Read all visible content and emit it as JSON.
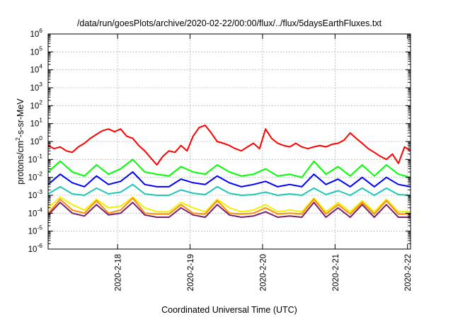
{
  "chart_data": {
    "type": "line",
    "title": "/data/run/goesPlots/archive/2020-02-22/00:00/flux/../flux/5daysEarthFluxes.txt",
    "xlabel": "Coordinated Universal Time (UTC)",
    "ylabel_parts": [
      "protons/cm",
      "2",
      "-s-sr-MeV"
    ],
    "y_scale": "log",
    "ylim": [
      1e-06,
      1000000.0
    ],
    "y_ticks": [
      {
        "base": "10",
        "exp": "-6",
        "value": 1e-06
      },
      {
        "base": "10",
        "exp": "-5",
        "value": 1e-05
      },
      {
        "base": "10",
        "exp": "-4",
        "value": 0.0001
      },
      {
        "base": "10",
        "exp": "-3",
        "value": 0.001
      },
      {
        "base": "10",
        "exp": "-2",
        "value": 0.01
      },
      {
        "base": "10",
        "exp": "-1",
        "value": 0.1
      },
      {
        "base": "10",
        "exp": "0",
        "value": 1
      },
      {
        "base": "10",
        "exp": "1",
        "value": 10
      },
      {
        "base": "10",
        "exp": "2",
        "value": 100
      },
      {
        "base": "10",
        "exp": "3",
        "value": 1000
      },
      {
        "base": "10",
        "exp": "4",
        "value": 10000
      },
      {
        "base": "10",
        "exp": "5",
        "value": 100000
      },
      {
        "base": "10",
        "exp": "6",
        "value": 1000000
      }
    ],
    "x_range": [
      "2020-02-17T01:00",
      "2020-02-22T01:00"
    ],
    "x_ticks": [
      "2020-2-18",
      "2020-2-19",
      "2020-2-20",
      "2020-2-21",
      "2020-2-22"
    ],
    "x_tick_dates": [
      "2020-02-18T00:00",
      "2020-02-19T00:00",
      "2020-02-20T00:00",
      "2020-02-21T00:00",
      "2020-02-22T00:00"
    ],
    "grid": true,
    "series": [
      {
        "color": "#ff0000",
        "x": [
          "2020-02-17T01:00",
          "2020-02-17T03:00",
          "2020-02-17T05:00",
          "2020-02-17T07:00",
          "2020-02-17T09:00",
          "2020-02-17T11:00",
          "2020-02-17T13:00",
          "2020-02-17T15:00",
          "2020-02-17T17:00",
          "2020-02-17T19:00",
          "2020-02-17T21:00",
          "2020-02-17T23:00",
          "2020-02-18T01:00",
          "2020-02-18T03:00",
          "2020-02-18T05:00",
          "2020-02-18T07:00",
          "2020-02-18T09:00",
          "2020-02-18T11:00",
          "2020-02-18T13:00",
          "2020-02-18T15:00",
          "2020-02-18T17:00",
          "2020-02-18T19:00",
          "2020-02-18T21:00",
          "2020-02-18T23:00",
          "2020-02-19T01:00",
          "2020-02-19T03:00",
          "2020-02-19T05:00",
          "2020-02-19T07:00",
          "2020-02-19T09:00",
          "2020-02-19T11:00",
          "2020-02-19T13:00",
          "2020-02-19T15:00",
          "2020-02-19T17:00",
          "2020-02-19T19:00",
          "2020-02-19T21:00",
          "2020-02-19T23:00",
          "2020-02-20T01:00",
          "2020-02-20T03:00",
          "2020-02-20T05:00",
          "2020-02-20T07:00",
          "2020-02-20T09:00",
          "2020-02-20T11:00",
          "2020-02-20T13:00",
          "2020-02-20T15:00",
          "2020-02-20T17:00",
          "2020-02-20T19:00",
          "2020-02-20T21:00",
          "2020-02-20T23:00",
          "2020-02-21T01:00",
          "2020-02-21T03:00",
          "2020-02-21T05:00",
          "2020-02-21T07:00",
          "2020-02-21T09:00",
          "2020-02-21T11:00",
          "2020-02-21T13:00",
          "2020-02-21T15:00",
          "2020-02-21T17:00",
          "2020-02-21T19:00",
          "2020-02-21T21:00",
          "2020-02-21T23:00",
          "2020-02-22T01:00"
        ],
        "y": [
          0.6,
          0.4,
          0.5,
          0.3,
          0.25,
          0.5,
          0.8,
          1.5,
          2.5,
          4,
          5,
          3.5,
          5,
          2,
          1.5,
          0.6,
          0.3,
          0.12,
          0.05,
          0.15,
          0.3,
          0.25,
          0.6,
          0.3,
          2,
          6,
          8,
          3,
          1,
          0.8,
          0.6,
          0.4,
          0.3,
          0.5,
          0.8,
          0.4,
          5,
          1.5,
          0.8,
          0.6,
          0.5,
          0.8,
          0.5,
          0.4,
          0.5,
          0.6,
          0.5,
          0.7,
          0.8,
          1.2,
          3,
          1.5,
          0.8,
          0.4,
          0.25,
          0.15,
          0.1,
          0.2,
          0.06,
          0.5,
          0.3
        ]
      },
      {
        "color": "#00ff00",
        "x": [
          "2020-02-17T01:00",
          "2020-02-17T05:00",
          "2020-02-17T09:00",
          "2020-02-17T13:00",
          "2020-02-17T17:00",
          "2020-02-17T21:00",
          "2020-02-18T01:00",
          "2020-02-18T05:00",
          "2020-02-18T09:00",
          "2020-02-18T13:00",
          "2020-02-18T17:00",
          "2020-02-18T21:00",
          "2020-02-19T01:00",
          "2020-02-19T05:00",
          "2020-02-19T09:00",
          "2020-02-19T13:00",
          "2020-02-19T17:00",
          "2020-02-19T21:00",
          "2020-02-20T01:00",
          "2020-02-20T05:00",
          "2020-02-20T09:00",
          "2020-02-20T13:00",
          "2020-02-20T17:00",
          "2020-02-20T21:00",
          "2020-02-21T01:00",
          "2020-02-21T05:00",
          "2020-02-21T09:00",
          "2020-02-21T13:00",
          "2020-02-21T17:00",
          "2020-02-21T21:00",
          "2020-02-22T01:00"
        ],
        "y": [
          0.02,
          0.08,
          0.02,
          0.012,
          0.05,
          0.015,
          0.03,
          0.1,
          0.02,
          0.015,
          0.012,
          0.04,
          0.02,
          0.015,
          0.05,
          0.02,
          0.012,
          0.015,
          0.03,
          0.012,
          0.015,
          0.01,
          0.08,
          0.015,
          0.04,
          0.012,
          0.05,
          0.012,
          0.05,
          0.015,
          0.01
        ]
      },
      {
        "color": "#0000ff",
        "x": [
          "2020-02-17T01:00",
          "2020-02-17T05:00",
          "2020-02-17T09:00",
          "2020-02-17T13:00",
          "2020-02-17T17:00",
          "2020-02-17T21:00",
          "2020-02-18T01:00",
          "2020-02-18T05:00",
          "2020-02-18T09:00",
          "2020-02-18T13:00",
          "2020-02-18T17:00",
          "2020-02-18T21:00",
          "2020-02-19T01:00",
          "2020-02-19T05:00",
          "2020-02-19T09:00",
          "2020-02-19T13:00",
          "2020-02-19T17:00",
          "2020-02-19T21:00",
          "2020-02-20T01:00",
          "2020-02-20T05:00",
          "2020-02-20T09:00",
          "2020-02-20T13:00",
          "2020-02-20T17:00",
          "2020-02-20T21:00",
          "2020-02-21T01:00",
          "2020-02-21T05:00",
          "2020-02-21T09:00",
          "2020-02-21T13:00",
          "2020-02-21T17:00",
          "2020-02-21T21:00",
          "2020-02-22T01:00"
        ],
        "y": [
          0.004,
          0.015,
          0.005,
          0.003,
          0.012,
          0.004,
          0.006,
          0.02,
          0.004,
          0.003,
          0.003,
          0.008,
          0.005,
          0.004,
          0.012,
          0.005,
          0.003,
          0.004,
          0.006,
          0.003,
          0.004,
          0.003,
          0.015,
          0.004,
          0.008,
          0.003,
          0.01,
          0.003,
          0.01,
          0.004,
          0.003
        ]
      },
      {
        "color": "#1ec8b4",
        "x": [
          "2020-02-17T01:00",
          "2020-02-17T05:00",
          "2020-02-17T09:00",
          "2020-02-17T13:00",
          "2020-02-17T17:00",
          "2020-02-17T21:00",
          "2020-02-18T01:00",
          "2020-02-18T05:00",
          "2020-02-18T09:00",
          "2020-02-18T13:00",
          "2020-02-18T17:00",
          "2020-02-18T21:00",
          "2020-02-19T01:00",
          "2020-02-19T05:00",
          "2020-02-19T09:00",
          "2020-02-19T13:00",
          "2020-02-19T17:00",
          "2020-02-19T21:00",
          "2020-02-20T01:00",
          "2020-02-20T05:00",
          "2020-02-20T09:00",
          "2020-02-20T13:00",
          "2020-02-20T17:00",
          "2020-02-20T21:00",
          "2020-02-21T01:00",
          "2020-02-21T05:00",
          "2020-02-21T09:00",
          "2020-02-21T13:00",
          "2020-02-21T17:00",
          "2020-02-21T21:00",
          "2020-02-22T01:00"
        ],
        "y": [
          0.0012,
          0.003,
          0.0012,
          0.001,
          0.0025,
          0.0012,
          0.0015,
          0.004,
          0.0012,
          0.001,
          0.001,
          0.002,
          0.0013,
          0.0011,
          0.003,
          0.0013,
          0.001,
          0.0011,
          0.0015,
          0.001,
          0.0012,
          0.001,
          0.0025,
          0.0011,
          0.0018,
          0.001,
          0.0025,
          0.001,
          0.0025,
          0.0011,
          0.001
        ]
      },
      {
        "color": "#f0f000",
        "x": [
          "2020-02-17T01:00",
          "2020-02-17T05:00",
          "2020-02-17T09:00",
          "2020-02-17T13:00",
          "2020-02-17T17:00",
          "2020-02-17T21:00",
          "2020-02-18T01:00",
          "2020-02-18T05:00",
          "2020-02-18T09:00",
          "2020-02-18T13:00",
          "2020-02-18T17:00",
          "2020-02-18T21:00",
          "2020-02-19T01:00",
          "2020-02-19T05:00",
          "2020-02-19T09:00",
          "2020-02-19T13:00",
          "2020-02-19T17:00",
          "2020-02-19T21:00",
          "2020-02-20T01:00",
          "2020-02-20T05:00",
          "2020-02-20T09:00",
          "2020-02-20T13:00",
          "2020-02-20T17:00",
          "2020-02-20T21:00",
          "2020-02-21T01:00",
          "2020-02-21T05:00",
          "2020-02-21T09:00",
          "2020-02-21T13:00",
          "2020-02-21T17:00",
          "2020-02-21T21:00",
          "2020-02-22T01:00"
        ],
        "y": [
          0.0002,
          0.0008,
          0.0003,
          0.00015,
          0.0006,
          0.0002,
          0.00025,
          0.0008,
          0.0002,
          0.00012,
          0.00012,
          0.0004,
          0.0002,
          0.00012,
          0.0006,
          0.0002,
          0.00012,
          0.00015,
          0.0003,
          0.00012,
          0.00015,
          0.00012,
          0.0007,
          0.00012,
          0.0004,
          0.00012,
          0.0005,
          0.00012,
          0.0006,
          0.00012,
          0.00012
        ]
      },
      {
        "color": "#ff8c00",
        "x": [
          "2020-02-17T01:00",
          "2020-02-17T05:00",
          "2020-02-17T09:00",
          "2020-02-17T13:00",
          "2020-02-17T17:00",
          "2020-02-17T21:00",
          "2020-02-18T01:00",
          "2020-02-18T05:00",
          "2020-02-18T09:00",
          "2020-02-18T13:00",
          "2020-02-18T17:00",
          "2020-02-18T21:00",
          "2020-02-19T01:00",
          "2020-02-19T05:00",
          "2020-02-19T09:00",
          "2020-02-19T13:00",
          "2020-02-19T17:00",
          "2020-02-19T21:00",
          "2020-02-20T01:00",
          "2020-02-20T05:00",
          "2020-02-20T09:00",
          "2020-02-20T13:00",
          "2020-02-20T17:00",
          "2020-02-20T21:00",
          "2020-02-21T01:00",
          "2020-02-21T05:00",
          "2020-02-21T09:00",
          "2020-02-21T13:00",
          "2020-02-21T17:00",
          "2020-02-21T21:00",
          "2020-02-22T01:00"
        ],
        "y": [
          0.0001,
          0.0006,
          0.00015,
          0.0001,
          0.0005,
          0.0001,
          0.00015,
          0.0007,
          0.0001,
          9e-05,
          9e-05,
          0.0003,
          0.0001,
          9e-05,
          0.0005,
          0.0001,
          9e-05,
          0.0001,
          0.0002,
          9e-05,
          0.0001,
          9e-05,
          0.0006,
          9e-05,
          0.0003,
          9e-05,
          0.0004,
          9e-05,
          0.0005,
          9e-05,
          9e-05
        ]
      },
      {
        "color": "#7a1f6e",
        "x": [
          "2020-02-17T01:00",
          "2020-02-17T05:00",
          "2020-02-17T09:00",
          "2020-02-17T13:00",
          "2020-02-17T17:00",
          "2020-02-17T21:00",
          "2020-02-18T01:00",
          "2020-02-18T05:00",
          "2020-02-18T09:00",
          "2020-02-18T13:00",
          "2020-02-18T17:00",
          "2020-02-18T21:00",
          "2020-02-19T01:00",
          "2020-02-19T05:00",
          "2020-02-19T09:00",
          "2020-02-19T13:00",
          "2020-02-19T17:00",
          "2020-02-19T21:00",
          "2020-02-20T01:00",
          "2020-02-20T05:00",
          "2020-02-20T09:00",
          "2020-02-20T13:00",
          "2020-02-20T17:00",
          "2020-02-20T21:00",
          "2020-02-21T01:00",
          "2020-02-21T05:00",
          "2020-02-21T09:00",
          "2020-02-21T13:00",
          "2020-02-21T17:00",
          "2020-02-21T21:00",
          "2020-02-22T01:00"
        ],
        "y": [
          8e-05,
          0.0004,
          0.0001,
          7e-05,
          0.0003,
          8e-05,
          0.0001,
          0.0004,
          8e-05,
          6e-05,
          6e-05,
          0.0002,
          8e-05,
          6e-05,
          0.0003,
          8e-05,
          6e-05,
          7e-05,
          0.00012,
          6e-05,
          7e-05,
          6e-05,
          0.0004,
          6e-05,
          0.0002,
          6e-05,
          0.0003,
          6e-05,
          0.0003,
          6e-05,
          6e-05
        ]
      }
    ]
  }
}
